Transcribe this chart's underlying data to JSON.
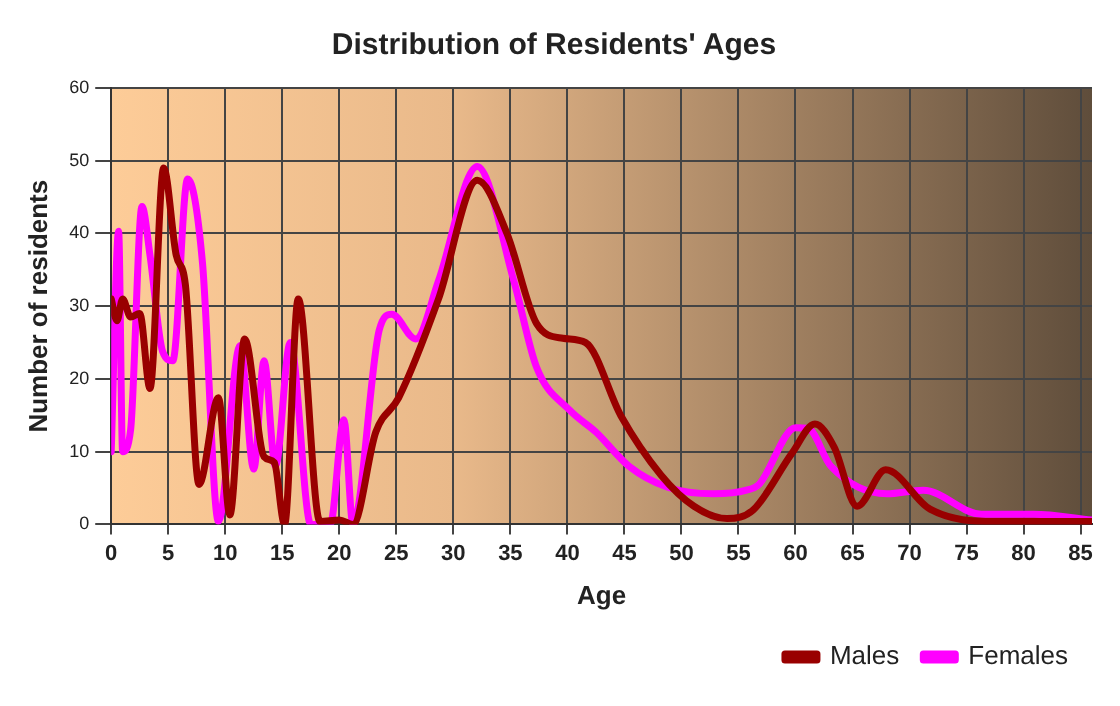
{
  "chart_data": {
    "type": "line",
    "title": "Distribution of Residents' Ages",
    "xlabel": "Age",
    "ylabel": "Number of residents",
    "xlim": [
      0,
      86
    ],
    "xticks": [
      0,
      5,
      10,
      15,
      20,
      25,
      30,
      35,
      40,
      45,
      50,
      55,
      60,
      65,
      70,
      75,
      80,
      85
    ],
    "ylim": [
      0,
      60
    ],
    "yticks": [
      0,
      10,
      20,
      30,
      40,
      50,
      60
    ],
    "grid": true,
    "legend": "bottom right",
    "marker": "none",
    "line_style": "solid",
    "series": [
      {
        "name": "Males",
        "color": "#990000",
        "x": [
          0,
          0.5,
          1,
          1.7,
          2.5,
          3.4,
          4.6,
          5.7,
          6.5,
          7.7,
          9.4,
          10.4,
          11.7,
          13.4,
          14.3,
          15.2,
          16.4,
          18.3,
          20,
          21.2,
          23.2,
          25.2,
          28.7,
          32.1,
          34.7,
          37.3,
          39.6,
          41.6,
          44.7,
          48.2,
          51.1,
          54,
          56.3,
          59.7,
          61.7,
          63.4,
          65.4,
          67.9,
          71.8,
          77.5,
          86
        ],
        "values": [
          31,
          28,
          31,
          28.5,
          29,
          18.7,
          49,
          37,
          33,
          5.5,
          17.4,
          1.3,
          25.5,
          9.3,
          8.5,
          0,
          31,
          0.4,
          0.6,
          0,
          12.7,
          17.4,
          31,
          47.3,
          40,
          27.6,
          25.6,
          25,
          14.9,
          6.8,
          2.5,
          0.8,
          2,
          9.8,
          13.8,
          10.6,
          2.5,
          7.5,
          2.1,
          0.4,
          0.4
        ]
      },
      {
        "name": "Females",
        "color": "#ff00ff",
        "x": [
          0,
          0.65,
          1,
          1.7,
          2.7,
          3.4,
          4.5,
          5.4,
          6.7,
          8,
          9.4,
          11.3,
          12.5,
          13.4,
          14.4,
          15.7,
          17.5,
          19.2,
          20.4,
          21.2,
          23.5,
          24.6,
          26.7,
          28.7,
          32.1,
          35.3,
          37.3,
          40.2,
          42.5,
          45.4,
          48.8,
          52.8,
          55.7,
          56.8,
          60,
          61.1,
          63.1,
          68,
          71.2,
          76.3,
          80.9,
          86
        ],
        "values": [
          10,
          40.3,
          10,
          13,
          43.7,
          37,
          23.8,
          22.5,
          47.5,
          36,
          0.4,
          24.6,
          7.6,
          22.5,
          8,
          25,
          0,
          0,
          14.4,
          0,
          26.7,
          28.9,
          25.5,
          33.5,
          49.2,
          33.5,
          21.6,
          15.7,
          12.7,
          8,
          5.1,
          4.2,
          4.7,
          5.5,
          13.3,
          13.2,
          8,
          4.2,
          4.7,
          1.4,
          1.4,
          0.6
        ]
      }
    ]
  }
}
